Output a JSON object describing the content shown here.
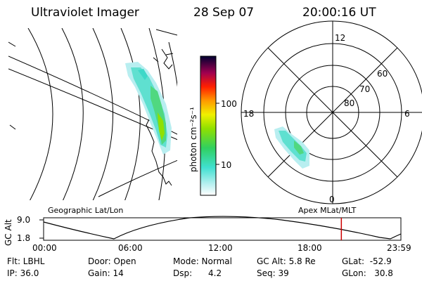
{
  "header": {
    "title": "Ultraviolet Imager",
    "date": "28 Sep 07",
    "time": "20:00:16 UT"
  },
  "colorbar": {
    "unit_label": "photon cm⁻²s⁻¹",
    "ticks": [
      "100",
      "10"
    ]
  },
  "polar_plot": {
    "mlt_labels": {
      "top": "12",
      "left": "18",
      "right": "6",
      "bottom": "0"
    },
    "lat_labels": [
      "60",
      "70",
      "80"
    ]
  },
  "captions": {
    "left_map": "Geographic Lat/Lon",
    "right_map": "Apex MLat/MLT"
  },
  "altitude_plot": {
    "axis_label": "GC Alt",
    "y_ticks": [
      "9.0",
      "1.8"
    ],
    "x_ticks": [
      "00:00",
      "06:00",
      "12:00",
      "18:00",
      "23:59"
    ],
    "current_time_hours": 20.0,
    "marker_color": "#cc0000"
  },
  "info": {
    "flt": "Flt: LBHL",
    "ip": "IP: 36.0",
    "door": "Door: Open",
    "gain": "Gain: 14",
    "mode": "Mode: Normal",
    "dsp": "Dsp:      4.2",
    "gc_alt": "GC Alt: 5.8 Re",
    "seq": "Seq: 39",
    "glat": "GLat:  -52.9",
    "glon": "GLon:   30.8"
  }
}
